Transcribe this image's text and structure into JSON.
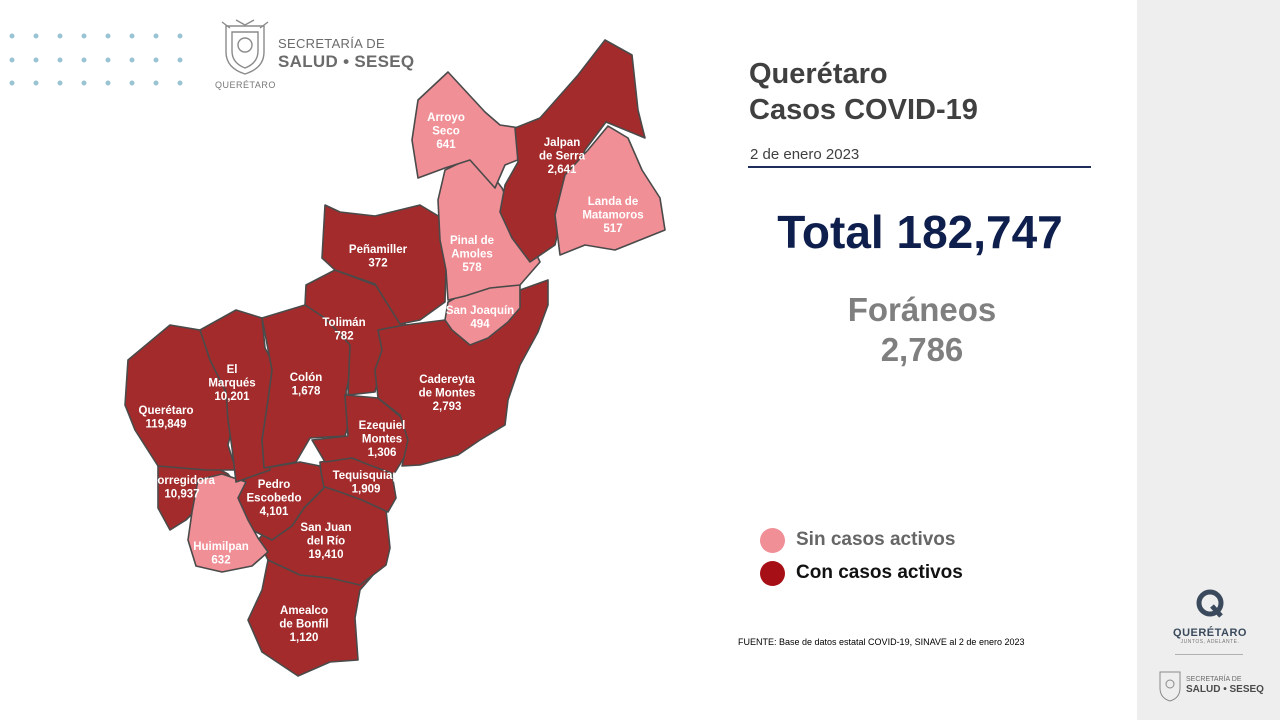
{
  "header": {
    "org_line1": "SECRETARÍA DE",
    "org_line2": "SALUD • SESEQ",
    "seal_caption": "QUERÉTARO"
  },
  "title_line1": "Querétaro",
  "title_line2": "Casos COVID-19",
  "date": "2 de enero 2023",
  "total": "Total 182,747",
  "foraneos_label": "Foráneos",
  "foraneos_value": "2,786",
  "legend": [
    {
      "label": "Sin casos activos",
      "color": "#f08f96",
      "text_color": "#666666"
    },
    {
      "label": "Con casos activos",
      "color": "#a50f15",
      "text_color": "#111111"
    }
  ],
  "source": "FUENTE: Base de datos estatal  COVID-19,  SINAVE  al 2 de enero 2023",
  "colors": {
    "active": "#a32b2b",
    "inactive": "#f08f96",
    "border": "#4a4a4a",
    "dots": "#9ac4d4"
  },
  "municipalities": [
    {
      "id": "arroyo-seco",
      "name": [
        "Arroyo",
        "Seco"
      ],
      "cases": "641",
      "status": "inactive"
    },
    {
      "id": "jalpan",
      "name": [
        "Jalpan",
        "de Serra"
      ],
      "cases": "2,641",
      "status": "active"
    },
    {
      "id": "landa",
      "name": [
        "Landa de",
        "Matamoros"
      ],
      "cases": "517",
      "status": "inactive"
    },
    {
      "id": "pinal",
      "name": [
        "Pinal de",
        "Amoles"
      ],
      "cases": "578",
      "status": "inactive"
    },
    {
      "id": "penamiller",
      "name": [
        "Peñamiller"
      ],
      "cases": "372",
      "status": "active"
    },
    {
      "id": "san-joaquin",
      "name": [
        "San Joaquín"
      ],
      "cases": "494",
      "status": "inactive"
    },
    {
      "id": "toliman",
      "name": [
        "Tolimán"
      ],
      "cases": "782",
      "status": "active"
    },
    {
      "id": "el-marques",
      "name": [
        "El",
        "Marqués"
      ],
      "cases": "10,201",
      "status": "active"
    },
    {
      "id": "colon",
      "name": [
        "Colón"
      ],
      "cases": "1,678",
      "status": "active"
    },
    {
      "id": "cadereyta",
      "name": [
        "Cadereyta",
        "de Montes"
      ],
      "cases": "2,793",
      "status": "active"
    },
    {
      "id": "queretaro",
      "name": [
        "Querétaro"
      ],
      "cases": "119,849",
      "status": "active"
    },
    {
      "id": "ezequiel",
      "name": [
        "Ezequiel",
        "Montes"
      ],
      "cases": "1,306",
      "status": "active"
    },
    {
      "id": "tequisquiapan",
      "name": [
        "Tequisquiap"
      ],
      "cases": "1,909",
      "status": "active"
    },
    {
      "id": "corregidora",
      "name": [
        "Corregidora"
      ],
      "cases": "10,937",
      "status": "active"
    },
    {
      "id": "pedro-escobedo",
      "name": [
        "Pedro",
        "Escobedo"
      ],
      "cases": "4,101",
      "status": "active"
    },
    {
      "id": "huimilpan",
      "name": [
        "Huimilpan"
      ],
      "cases": "632",
      "status": "inactive"
    },
    {
      "id": "san-juan",
      "name": [
        "San Juan",
        "del Río"
      ],
      "cases": "19,410",
      "status": "active"
    },
    {
      "id": "amealco",
      "name": [
        "Amealco",
        "de Bonfil"
      ],
      "cases": "1,120",
      "status": "active"
    }
  ],
  "side_logo": {
    "name": "QUERÉTARO",
    "tagline": "JUNTOS, ADELANTE.",
    "org_line1": "SECRETARÍA DE",
    "org_line2": "SALUD • SESEQ"
  }
}
